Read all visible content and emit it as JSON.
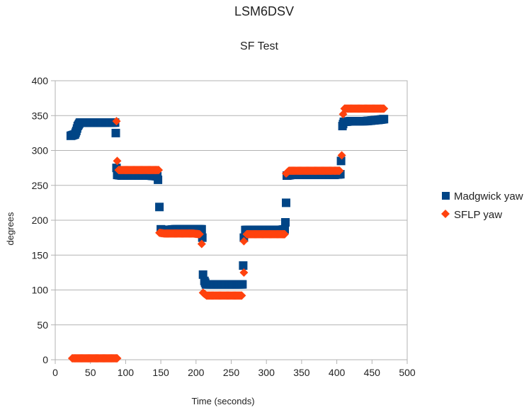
{
  "chart_data": {
    "type": "scatter",
    "title": "LSM6DSV",
    "subtitle": "SF Test",
    "xlabel": "Time (seconds)",
    "ylabel": "degrees",
    "xlim": [
      0,
      500
    ],
    "ylim": [
      0,
      400
    ],
    "x_ticks": [
      "0",
      "50",
      "100",
      "150",
      "200",
      "250",
      "300",
      "350",
      "400",
      "450",
      "500"
    ],
    "y_ticks": [
      "0",
      "50",
      "100",
      "150",
      "200",
      "250",
      "300",
      "350",
      "400"
    ],
    "grid": "horizontal",
    "legend_position": "right",
    "series": [
      {
        "name": "Madgwick yaw",
        "color": "#004586",
        "marker": "square",
        "points": [
          [
            22,
            321
          ],
          [
            25,
            322
          ],
          [
            28,
            323
          ],
          [
            30,
            328
          ],
          [
            32,
            335
          ],
          [
            35,
            340
          ],
          [
            45,
            340
          ],
          [
            55,
            340
          ],
          [
            65,
            340
          ],
          [
            75,
            340
          ],
          [
            85,
            340
          ],
          [
            86,
            325
          ],
          [
            87,
            275
          ],
          [
            88,
            265
          ],
          [
            95,
            264
          ],
          [
            105,
            264
          ],
          [
            115,
            264
          ],
          [
            125,
            264
          ],
          [
            135,
            264
          ],
          [
            145,
            263
          ],
          [
            146,
            258
          ],
          [
            148,
            219
          ],
          [
            150,
            187
          ],
          [
            152,
            186
          ],
          [
            160,
            186
          ],
          [
            170,
            187
          ],
          [
            180,
            187
          ],
          [
            190,
            187
          ],
          [
            200,
            187
          ],
          [
            208,
            187
          ],
          [
            209,
            175
          ],
          [
            210,
            122
          ],
          [
            212,
            113
          ],
          [
            214,
            108
          ],
          [
            220,
            108
          ],
          [
            230,
            108
          ],
          [
            240,
            108
          ],
          [
            250,
            108
          ],
          [
            260,
            108
          ],
          [
            266,
            108
          ],
          [
            267,
            135
          ],
          [
            268,
            175
          ],
          [
            270,
            186
          ],
          [
            280,
            186
          ],
          [
            290,
            186
          ],
          [
            300,
            186
          ],
          [
            310,
            186
          ],
          [
            320,
            186
          ],
          [
            326,
            187
          ],
          [
            327,
            197
          ],
          [
            328,
            225
          ],
          [
            329,
            264
          ],
          [
            335,
            265
          ],
          [
            345,
            265
          ],
          [
            355,
            265
          ],
          [
            365,
            265
          ],
          [
            375,
            265
          ],
          [
            385,
            265
          ],
          [
            395,
            265
          ],
          [
            405,
            266
          ],
          [
            406,
            285
          ],
          [
            408,
            335
          ],
          [
            410,
            341
          ],
          [
            420,
            342
          ],
          [
            430,
            342
          ],
          [
            440,
            342
          ],
          [
            450,
            343
          ],
          [
            460,
            344
          ],
          [
            467,
            345
          ]
        ]
      },
      {
        "name": "SFLP yaw",
        "color": "#ff420e",
        "marker": "diamond",
        "points": [
          [
            24,
            2
          ],
          [
            30,
            2
          ],
          [
            40,
            2
          ],
          [
            50,
            2
          ],
          [
            60,
            2
          ],
          [
            70,
            2
          ],
          [
            80,
            2
          ],
          [
            88,
            2
          ],
          [
            87,
            342
          ],
          [
            88,
            285
          ],
          [
            90,
            272
          ],
          [
            100,
            272
          ],
          [
            110,
            272
          ],
          [
            120,
            272
          ],
          [
            130,
            272
          ],
          [
            140,
            272
          ],
          [
            147,
            272
          ],
          [
            148,
            182
          ],
          [
            155,
            181
          ],
          [
            165,
            181
          ],
          [
            175,
            181
          ],
          [
            185,
            181
          ],
          [
            195,
            181
          ],
          [
            205,
            180
          ],
          [
            208,
            166
          ],
          [
            210,
            96
          ],
          [
            215,
            92
          ],
          [
            225,
            92
          ],
          [
            235,
            92
          ],
          [
            245,
            92
          ],
          [
            255,
            92
          ],
          [
            265,
            92
          ],
          [
            268,
            125
          ],
          [
            268,
            170
          ],
          [
            272,
            180
          ],
          [
            282,
            180
          ],
          [
            292,
            180
          ],
          [
            302,
            180
          ],
          [
            312,
            180
          ],
          [
            322,
            180
          ],
          [
            326,
            180
          ],
          [
            328,
            267
          ],
          [
            332,
            271
          ],
          [
            342,
            271
          ],
          [
            352,
            271
          ],
          [
            362,
            271
          ],
          [
            372,
            271
          ],
          [
            382,
            271
          ],
          [
            392,
            271
          ],
          [
            404,
            271
          ],
          [
            407,
            293
          ],
          [
            409,
            352
          ],
          [
            411,
            360
          ],
          [
            420,
            360
          ],
          [
            430,
            360
          ],
          [
            440,
            360
          ],
          [
            450,
            360
          ],
          [
            460,
            360
          ],
          [
            467,
            360
          ]
        ]
      }
    ]
  }
}
